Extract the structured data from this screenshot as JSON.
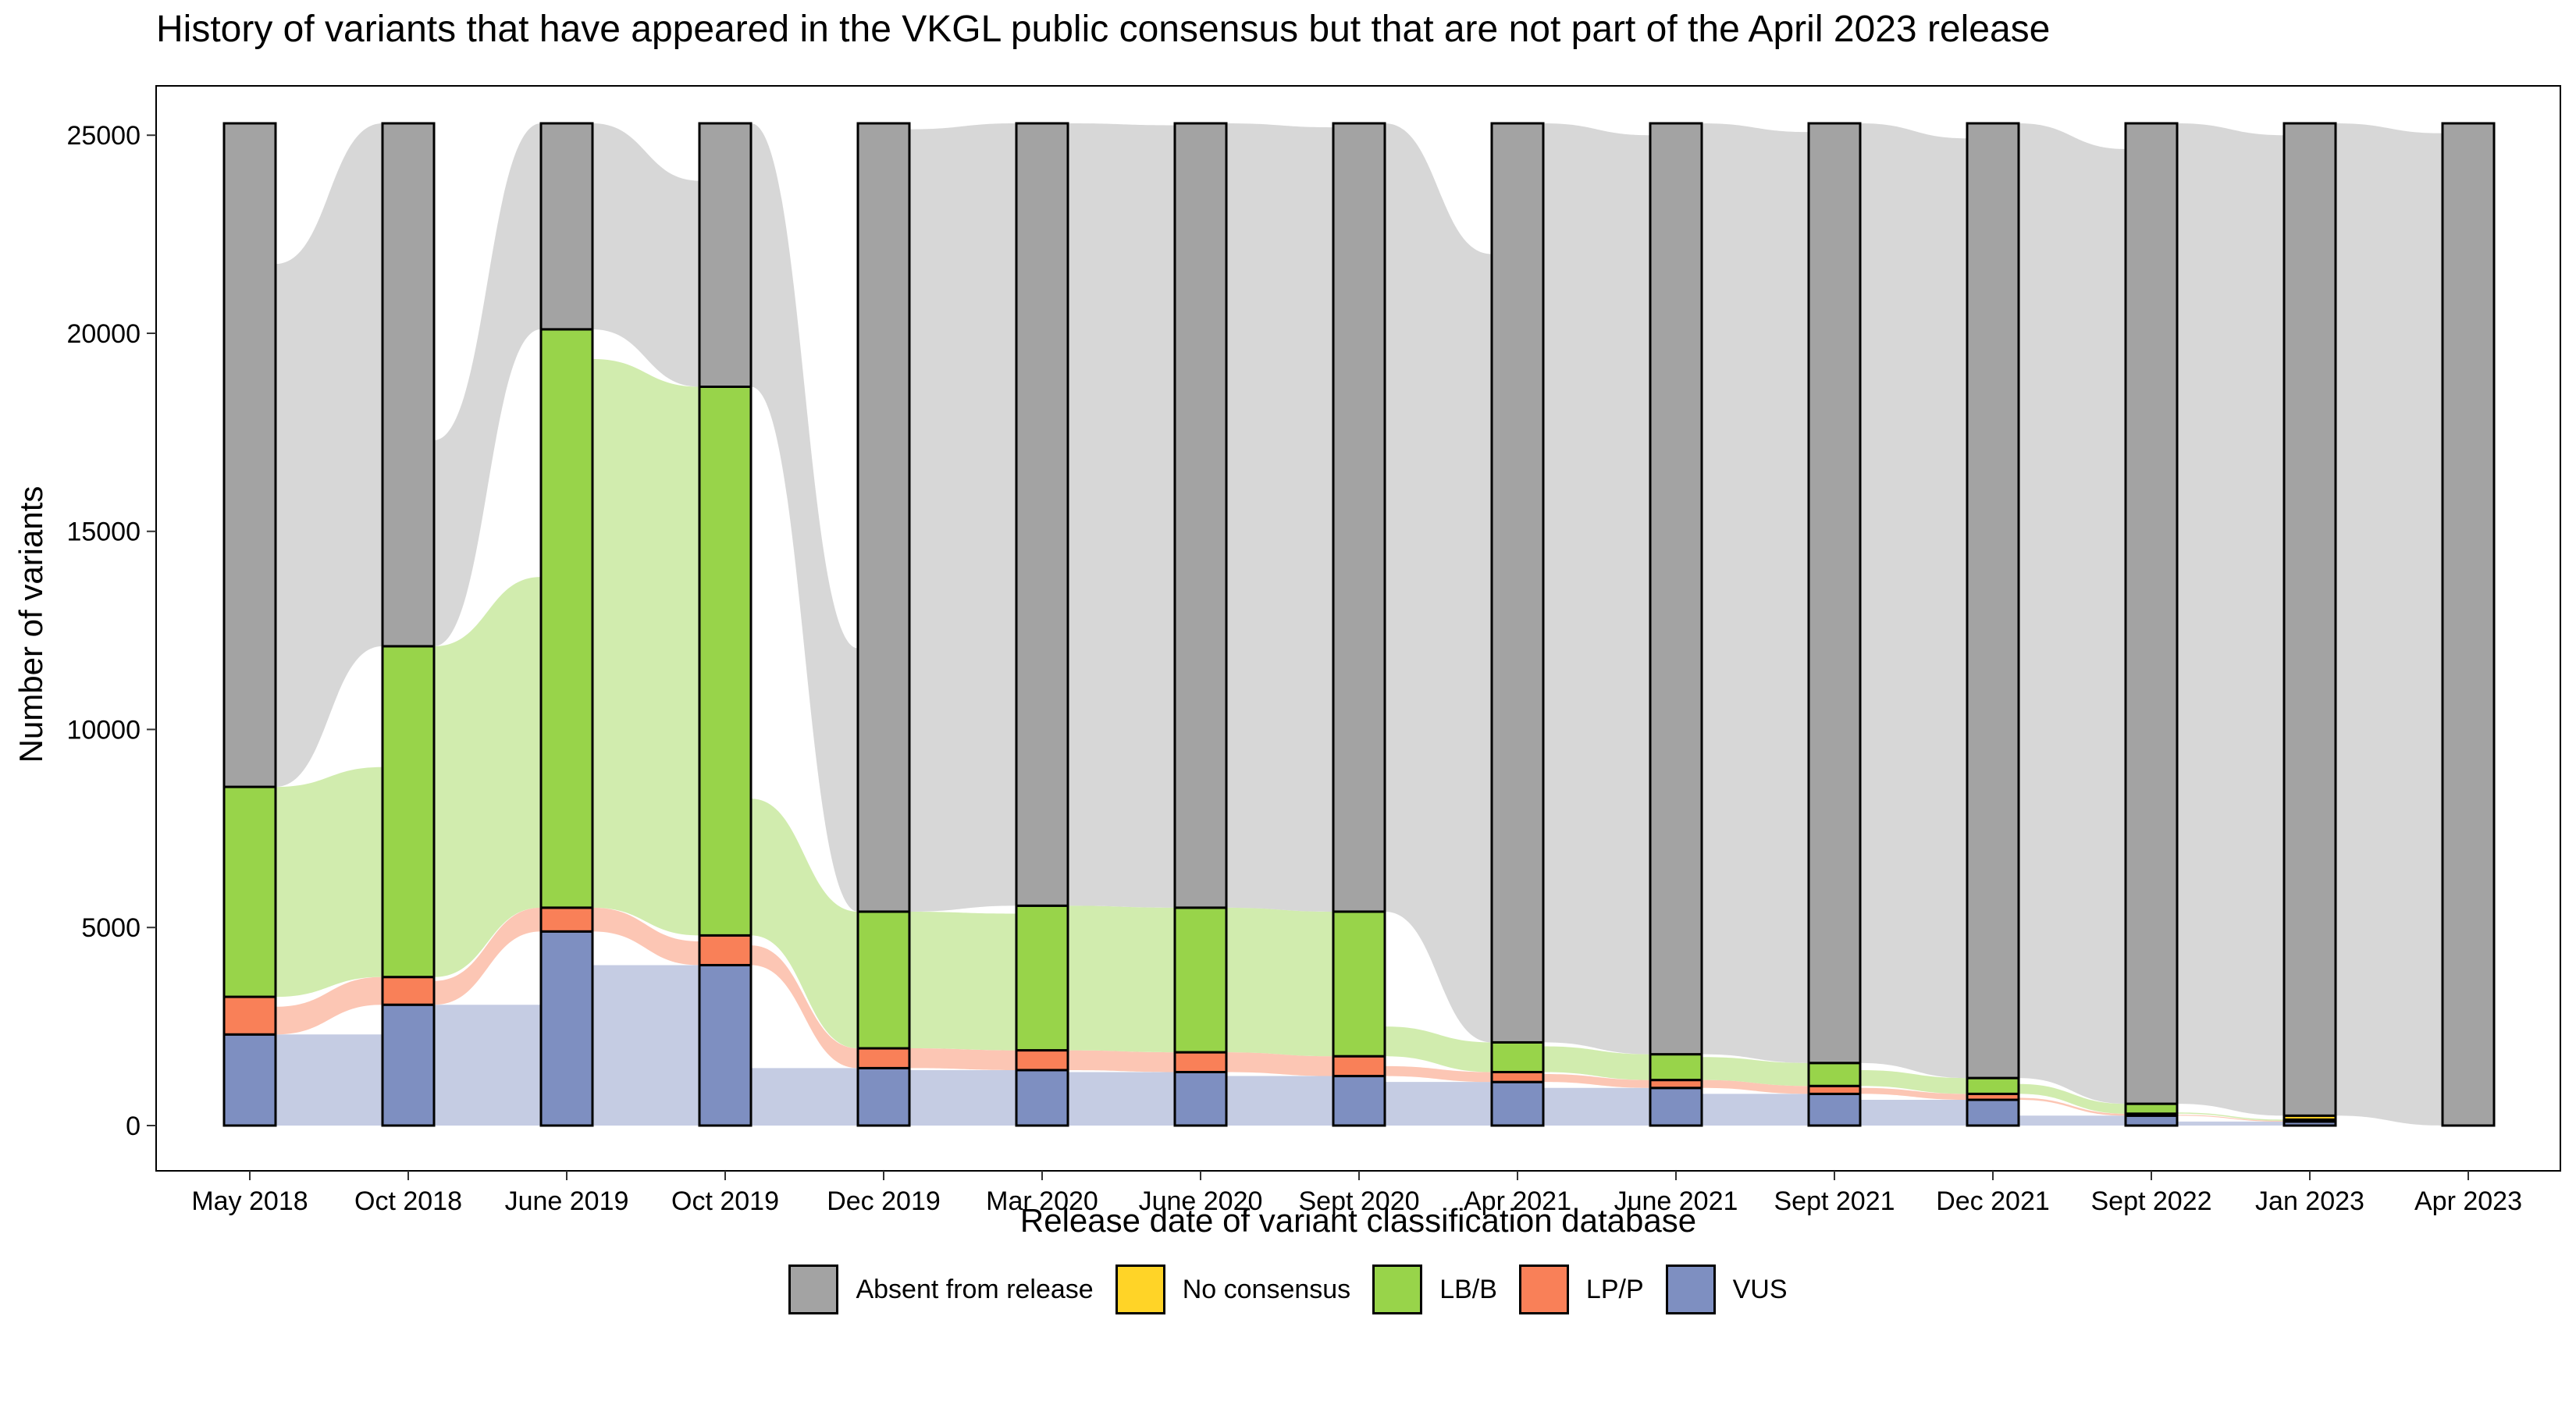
{
  "chart_data": {
    "type": "alluvial",
    "title": "History of variants that have appeared in the VKGL public consensus but that are not part of the April 2023 release",
    "xlabel": "Release date of variant classification database",
    "ylabel": "Number of variants",
    "ylim": [
      0,
      25300
    ],
    "yticks": [
      0,
      5000,
      10000,
      15000,
      20000,
      25000
    ],
    "categories": [
      "May 2018",
      "Oct 2018",
      "June 2019",
      "Oct 2019",
      "Dec 2019",
      "Mar 2020",
      "June 2020",
      "Sept 2020",
      "Apr 2021",
      "June 2021",
      "Sept 2021",
      "Dec 2021",
      "Sept 2022",
      "Jan 2023",
      "Apr 2023"
    ],
    "series": [
      {
        "name": "VUS",
        "color": "#7e8fc1",
        "values": [
          2300,
          3050,
          4900,
          4050,
          1450,
          1400,
          1350,
          1250,
          1100,
          950,
          800,
          650,
          250,
          100,
          0
        ]
      },
      {
        "name": "LP/P",
        "color": "#f98058",
        "values": [
          950,
          700,
          600,
          750,
          500,
          500,
          500,
          500,
          250,
          200,
          200,
          150,
          50,
          20,
          0
        ]
      },
      {
        "name": "LB/B",
        "color": "#98d44a",
        "values": [
          5300,
          8350,
          14600,
          13850,
          3450,
          3650,
          3650,
          3650,
          750,
          650,
          580,
          400,
          250,
          30,
          0
        ]
      },
      {
        "name": "No consensus",
        "color": "#ffd427",
        "values": [
          0,
          0,
          0,
          0,
          0,
          0,
          0,
          0,
          0,
          0,
          0,
          0,
          0,
          100,
          0
        ]
      },
      {
        "name": "Absent from release",
        "color": "#a3a3a3",
        "values": [
          16750,
          13200,
          5200,
          6650,
          19900,
          19750,
          19800,
          19900,
          23200,
          23500,
          23720,
          24100,
          24750,
          25050,
          25300
        ]
      }
    ],
    "legend_order": [
      "Absent from release",
      "No consensus",
      "LB/B",
      "LP/P",
      "VUS"
    ],
    "legend_position": "bottom",
    "grid": false
  }
}
